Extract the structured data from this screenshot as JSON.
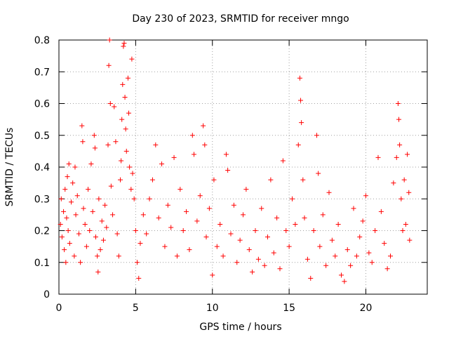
{
  "chart_data": {
    "type": "scatter",
    "title": "Day 230 of 2023, SRMTID for receiver mngo",
    "xlabel": "GPS time / hours",
    "ylabel": "SRMTID / TECUs",
    "xlim": [
      0,
      24
    ],
    "ylim": [
      0,
      0.8
    ],
    "x_ticks": [
      0,
      5,
      10,
      15,
      20
    ],
    "x_tick_labels": [
      "0",
      "5",
      "10",
      "15",
      "20"
    ],
    "y_ticks": [
      0,
      0.1,
      0.2,
      0.3,
      0.4,
      0.5,
      0.6,
      0.7,
      0.8
    ],
    "y_tick_labels": [
      "0",
      "0.1",
      "0.2",
      "0.3",
      "0.4",
      "0.5",
      "0.6",
      "0.7",
      "0.8"
    ],
    "grid": true,
    "legend": "none",
    "marker": "+",
    "color": "#ff0000",
    "series": [
      {
        "name": "SRMTID",
        "points": [
          [
            0.1,
            0.22
          ],
          [
            0.15,
            0.3
          ],
          [
            0.2,
            0.18
          ],
          [
            0.3,
            0.26
          ],
          [
            0.35,
            0.14
          ],
          [
            0.4,
            0.33
          ],
          [
            0.45,
            0.1
          ],
          [
            0.5,
            0.24
          ],
          [
            0.55,
            0.37
          ],
          [
            0.6,
            0.2
          ],
          [
            0.65,
            0.41
          ],
          [
            0.7,
            0.16
          ],
          [
            0.8,
            0.29
          ],
          [
            0.9,
            0.35
          ],
          [
            1.0,
            0.12
          ],
          [
            1.05,
            0.4
          ],
          [
            1.1,
            0.25
          ],
          [
            1.2,
            0.31
          ],
          [
            1.3,
            0.19
          ],
          [
            1.4,
            0.1
          ],
          [
            1.5,
            0.53
          ],
          [
            1.55,
            0.48
          ],
          [
            1.6,
            0.27
          ],
          [
            1.7,
            0.22
          ],
          [
            1.8,
            0.15
          ],
          [
            1.9,
            0.33
          ],
          [
            2.0,
            0.2
          ],
          [
            2.1,
            0.41
          ],
          [
            2.2,
            0.26
          ],
          [
            2.3,
            0.5
          ],
          [
            2.35,
            0.46
          ],
          [
            2.4,
            0.18
          ],
          [
            2.5,
            0.12
          ],
          [
            2.55,
            0.07
          ],
          [
            2.6,
            0.3
          ],
          [
            2.7,
            0.14
          ],
          [
            2.8,
            0.23
          ],
          [
            2.9,
            0.17
          ],
          [
            3.0,
            0.28
          ],
          [
            3.1,
            0.21
          ],
          [
            3.2,
            0.47
          ],
          [
            3.25,
            0.72
          ],
          [
            3.3,
            0.8
          ],
          [
            3.35,
            0.6
          ],
          [
            3.4,
            0.34
          ],
          [
            3.5,
            0.25
          ],
          [
            3.6,
            0.59
          ],
          [
            3.7,
            0.48
          ],
          [
            3.8,
            0.19
          ],
          [
            3.9,
            0.12
          ],
          [
            4.0,
            0.36
          ],
          [
            4.05,
            0.42
          ],
          [
            4.1,
            0.55
          ],
          [
            4.15,
            0.66
          ],
          [
            4.2,
            0.78
          ],
          [
            4.25,
            0.79
          ],
          [
            4.3,
            0.62
          ],
          [
            4.35,
            0.52
          ],
          [
            4.4,
            0.45
          ],
          [
            4.5,
            0.68
          ],
          [
            4.55,
            0.57
          ],
          [
            4.6,
            0.4
          ],
          [
            4.7,
            0.33
          ],
          [
            4.75,
            0.74
          ],
          [
            4.8,
            0.38
          ],
          [
            4.9,
            0.3
          ],
          [
            5.0,
            0.2
          ],
          [
            5.1,
            0.1
          ],
          [
            5.2,
            0.05
          ],
          [
            5.3,
            0.16
          ],
          [
            5.5,
            0.25
          ],
          [
            5.7,
            0.19
          ],
          [
            5.9,
            0.3
          ],
          [
            6.1,
            0.36
          ],
          [
            6.3,
            0.47
          ],
          [
            6.5,
            0.24
          ],
          [
            6.7,
            0.41
          ],
          [
            6.9,
            0.15
          ],
          [
            7.1,
            0.28
          ],
          [
            7.3,
            0.21
          ],
          [
            7.5,
            0.43
          ],
          [
            7.7,
            0.12
          ],
          [
            7.9,
            0.33
          ],
          [
            8.1,
            0.2
          ],
          [
            8.3,
            0.26
          ],
          [
            8.5,
            0.14
          ],
          [
            8.7,
            0.5
          ],
          [
            8.8,
            0.44
          ],
          [
            9.0,
            0.23
          ],
          [
            9.2,
            0.31
          ],
          [
            9.4,
            0.53
          ],
          [
            9.5,
            0.47
          ],
          [
            9.6,
            0.18
          ],
          [
            9.8,
            0.27
          ],
          [
            10.0,
            0.06
          ],
          [
            10.1,
            0.36
          ],
          [
            10.3,
            0.15
          ],
          [
            10.5,
            0.22
          ],
          [
            10.7,
            0.12
          ],
          [
            10.9,
            0.44
          ],
          [
            11.0,
            0.39
          ],
          [
            11.2,
            0.19
          ],
          [
            11.4,
            0.28
          ],
          [
            11.6,
            0.1
          ],
          [
            11.8,
            0.17
          ],
          [
            12.0,
            0.25
          ],
          [
            12.2,
            0.33
          ],
          [
            12.4,
            0.14
          ],
          [
            12.6,
            0.07
          ],
          [
            12.8,
            0.2
          ],
          [
            13.0,
            0.11
          ],
          [
            13.2,
            0.27
          ],
          [
            13.4,
            0.09
          ],
          [
            13.6,
            0.18
          ],
          [
            13.8,
            0.36
          ],
          [
            14.0,
            0.13
          ],
          [
            14.2,
            0.24
          ],
          [
            14.4,
            0.08
          ],
          [
            14.6,
            0.42
          ],
          [
            14.8,
            0.2
          ],
          [
            15.0,
            0.15
          ],
          [
            15.2,
            0.3
          ],
          [
            15.4,
            0.22
          ],
          [
            15.6,
            0.47
          ],
          [
            15.7,
            0.68
          ],
          [
            15.75,
            0.61
          ],
          [
            15.8,
            0.54
          ],
          [
            15.9,
            0.36
          ],
          [
            16.0,
            0.24
          ],
          [
            16.2,
            0.11
          ],
          [
            16.4,
            0.05
          ],
          [
            16.6,
            0.2
          ],
          [
            16.8,
            0.5
          ],
          [
            16.9,
            0.38
          ],
          [
            17.0,
            0.15
          ],
          [
            17.2,
            0.25
          ],
          [
            17.4,
            0.09
          ],
          [
            17.6,
            0.32
          ],
          [
            17.8,
            0.17
          ],
          [
            18.0,
            0.12
          ],
          [
            18.2,
            0.22
          ],
          [
            18.4,
            0.06
          ],
          [
            18.6,
            0.04
          ],
          [
            18.8,
            0.14
          ],
          [
            19.0,
            0.09
          ],
          [
            19.2,
            0.27
          ],
          [
            19.4,
            0.12
          ],
          [
            19.6,
            0.18
          ],
          [
            19.8,
            0.23
          ],
          [
            20.0,
            0.31
          ],
          [
            20.2,
            0.13
          ],
          [
            20.4,
            0.1
          ],
          [
            20.6,
            0.2
          ],
          [
            20.8,
            0.43
          ],
          [
            21.0,
            0.26
          ],
          [
            21.2,
            0.16
          ],
          [
            21.4,
            0.08
          ],
          [
            21.6,
            0.12
          ],
          [
            21.8,
            0.35
          ],
          [
            22.0,
            0.43
          ],
          [
            22.1,
            0.6
          ],
          [
            22.15,
            0.55
          ],
          [
            22.2,
            0.47
          ],
          [
            22.3,
            0.3
          ],
          [
            22.4,
            0.2
          ],
          [
            22.5,
            0.36
          ],
          [
            22.6,
            0.22
          ],
          [
            22.7,
            0.44
          ],
          [
            22.8,
            0.32
          ],
          [
            22.85,
            0.17
          ]
        ]
      }
    ]
  }
}
